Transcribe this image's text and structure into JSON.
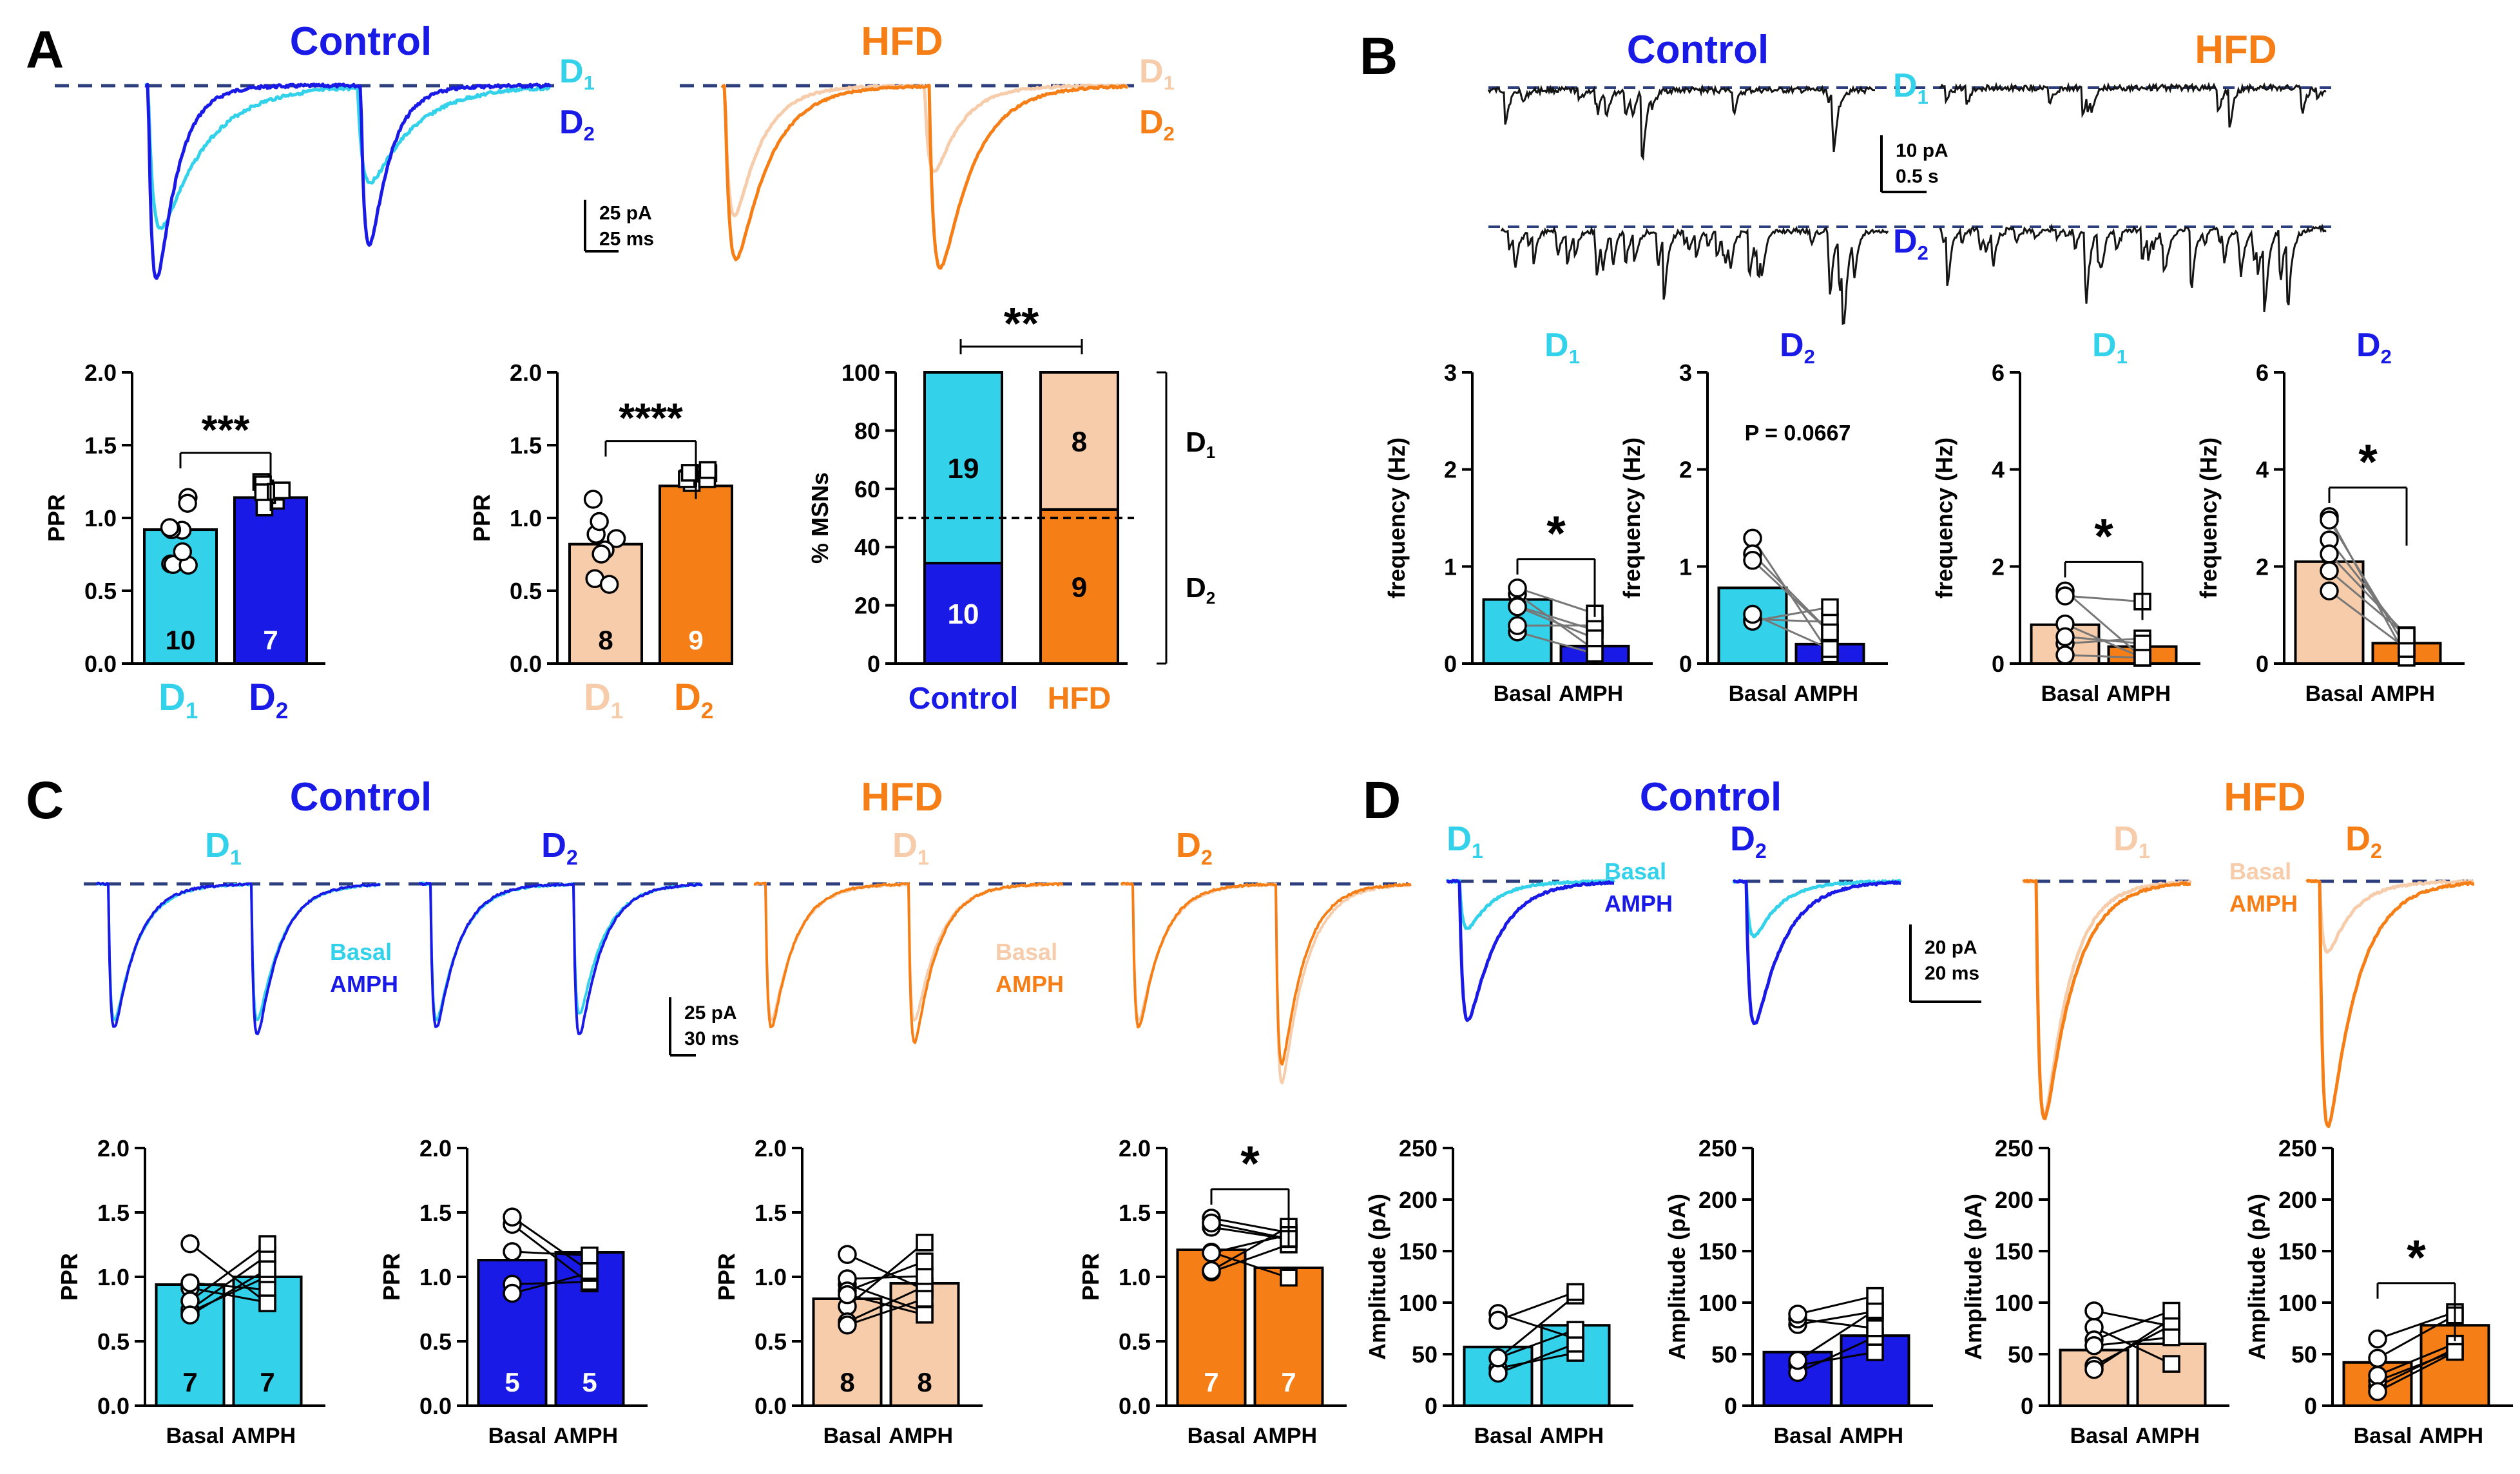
{
  "colors": {
    "control_d1": "#33d1ea",
    "control_d2": "#1a1ae6",
    "hfd_d1": "#f6ccaa",
    "hfd_d2": "#f57f16",
    "trace_black": "#141414",
    "baseline": "#2d3e7e"
  },
  "panels": {
    "A": {
      "letter": "A",
      "control_title": "Control",
      "hfd_title": "HFD",
      "d1_label": "D",
      "d2_label": "D",
      "sub1": "1",
      "sub2": "2",
      "scale_y": "25 pA",
      "scale_x": "25 ms"
    },
    "B": {
      "letter": "B",
      "control_title": "Control",
      "hfd_title": "HFD",
      "d1_label": "D",
      "d2_label": "D",
      "sub1": "1",
      "sub2": "2",
      "scale_y": "10 pA",
      "scale_x": "0.5 s"
    },
    "C": {
      "letter": "C",
      "control_title": "Control",
      "hfd_title": "HFD",
      "d_label": "D",
      "sub1": "1",
      "sub2": "2",
      "basal_label": "Basal",
      "amph_label": "AMPH",
      "scale_y": "25 pA",
      "scale_x": "30 ms"
    },
    "D": {
      "letter": "D",
      "control_title": "Control",
      "hfd_title": "HFD",
      "d_label": "D",
      "sub1": "1",
      "sub2": "2",
      "basal_label": "Basal",
      "amph_label": "AMPH",
      "scale_y": "20 pA",
      "scale_x": "20 ms"
    }
  },
  "chart_data": [
    {
      "id": "A-ppr-control",
      "type": "bar",
      "panel": "A",
      "ylabel": "PPR",
      "ylim": [
        0,
        2.0
      ],
      "yticks": [
        "0.0",
        "0.5",
        "1.0",
        "1.5",
        "2.0"
      ],
      "categories": [
        "D1",
        "D2"
      ],
      "category_labels": [
        {
          "main": "D",
          "sub": "1"
        },
        {
          "main": "D",
          "sub": "2"
        }
      ],
      "values": [
        0.92,
        1.14
      ],
      "n_labels": [
        "10",
        "7"
      ],
      "significance": "***"
    },
    {
      "id": "A-ppr-hfd",
      "type": "bar",
      "panel": "A",
      "ylabel": "PPR",
      "ylim": [
        0,
        2.0
      ],
      "yticks": [
        "0.0",
        "0.5",
        "1.0",
        "1.5",
        "2.0"
      ],
      "categories": [
        "D1",
        "D2"
      ],
      "category_labels": [
        {
          "main": "D",
          "sub": "1"
        },
        {
          "main": "D",
          "sub": "2"
        }
      ],
      "values": [
        0.82,
        1.22
      ],
      "n_labels": [
        "8",
        "9"
      ],
      "significance": "****"
    },
    {
      "id": "A-msns-stacked",
      "type": "bar",
      "panel": "A",
      "stacked": true,
      "ylabel": "% MSNs",
      "ylim": [
        0,
        100
      ],
      "yticks": [
        "0",
        "20",
        "40",
        "60",
        "80",
        "100"
      ],
      "categories": [
        "Control",
        "HFD"
      ],
      "series": [
        {
          "name": "D2",
          "values": [
            34.5,
            52.9
          ],
          "labels": [
            "10",
            "9"
          ]
        },
        {
          "name": "D1",
          "values": [
            65.5,
            47.1
          ],
          "labels": [
            "19",
            "8"
          ]
        }
      ],
      "bracket_labels": [
        {
          "main": "D",
          "sub": "1"
        },
        {
          "main": "D",
          "sub": "2"
        }
      ],
      "reference_line": 50,
      "significance": "**"
    },
    {
      "id": "B-freq-control-d1",
      "type": "bar",
      "panel": "B",
      "title": {
        "main": "D",
        "sub": "1"
      },
      "ylabel": "frequency (Hz)",
      "ylim": [
        0,
        3
      ],
      "yticks": [
        "0",
        "1",
        "2",
        "3"
      ],
      "categories": [
        "Basal",
        "AMPH"
      ],
      "values": [
        0.66,
        0.18
      ],
      "significance": "*"
    },
    {
      "id": "B-freq-control-d2",
      "type": "bar",
      "panel": "B",
      "title": {
        "main": "D",
        "sub": "2"
      },
      "ylabel": "frequency (Hz)",
      "ylim": [
        0,
        3
      ],
      "yticks": [
        "0",
        "1",
        "2",
        "3"
      ],
      "categories": [
        "Basal",
        "AMPH"
      ],
      "values": [
        0.78,
        0.2
      ],
      "annotation": "P = 0.0667"
    },
    {
      "id": "B-freq-hfd-d1",
      "type": "bar",
      "panel": "B",
      "title": {
        "main": "D",
        "sub": "1"
      },
      "ylabel": "frequency (Hz)",
      "ylim": [
        0,
        6
      ],
      "yticks": [
        "0",
        "2",
        "4",
        "6"
      ],
      "categories": [
        "Basal",
        "AMPH"
      ],
      "values": [
        0.8,
        0.35
      ],
      "significance": "*"
    },
    {
      "id": "B-freq-hfd-d2",
      "type": "bar",
      "panel": "B",
      "title": {
        "main": "D",
        "sub": "2"
      },
      "ylabel": "frequency (Hz)",
      "ylim": [
        0,
        6
      ],
      "yticks": [
        "0",
        "2",
        "4",
        "6"
      ],
      "categories": [
        "Basal",
        "AMPH"
      ],
      "values": [
        2.1,
        0.42
      ],
      "significance": "*"
    },
    {
      "id": "C-ppr-control-d1",
      "type": "bar",
      "panel": "C",
      "ylabel": "PPR",
      "ylim": [
        0,
        2.0
      ],
      "yticks": [
        "0.0",
        "0.5",
        "1.0",
        "1.5",
        "2.0"
      ],
      "categories": [
        "Basal",
        "AMPH"
      ],
      "values": [
        0.94,
        1.0
      ],
      "n_labels": [
        "7",
        "7"
      ]
    },
    {
      "id": "C-ppr-control-d2",
      "type": "bar",
      "panel": "C",
      "ylabel": "PPR",
      "ylim": [
        0,
        2.0
      ],
      "yticks": [
        "0.0",
        "0.5",
        "1.0",
        "1.5",
        "2.0"
      ],
      "categories": [
        "Basal",
        "AMPH"
      ],
      "values": [
        1.13,
        1.19
      ],
      "n_labels": [
        "5",
        "5"
      ]
    },
    {
      "id": "C-ppr-hfd-d1",
      "type": "bar",
      "panel": "C",
      "ylabel": "PPR",
      "ylim": [
        0,
        2.0
      ],
      "yticks": [
        "0.0",
        "0.5",
        "1.0",
        "1.5",
        "2.0"
      ],
      "categories": [
        "Basal",
        "AMPH"
      ],
      "values": [
        0.83,
        0.95
      ],
      "n_labels": [
        "8",
        "8"
      ]
    },
    {
      "id": "C-ppr-hfd-d2",
      "type": "bar",
      "panel": "C",
      "ylabel": "PPR",
      "ylim": [
        0,
        2.0
      ],
      "yticks": [
        "0.0",
        "0.5",
        "1.0",
        "1.5",
        "2.0"
      ],
      "categories": [
        "Basal",
        "AMPH"
      ],
      "values": [
        1.21,
        1.07
      ],
      "n_labels": [
        "7",
        "7"
      ],
      "significance": "*"
    },
    {
      "id": "D-amp-control-d1",
      "type": "bar",
      "panel": "D",
      "ylabel": "Amplitude (pA)",
      "ylim": [
        0,
        250
      ],
      "yticks": [
        "0",
        "50",
        "100",
        "150",
        "200",
        "250"
      ],
      "categories": [
        "Basal",
        "AMPH"
      ],
      "values": [
        57,
        78
      ]
    },
    {
      "id": "D-amp-control-d2",
      "type": "bar",
      "panel": "D",
      "ylabel": "Amplitude (pA)",
      "ylim": [
        0,
        250
      ],
      "yticks": [
        "0",
        "50",
        "100",
        "150",
        "200",
        "250"
      ],
      "categories": [
        "Basal",
        "AMPH"
      ],
      "values": [
        52,
        68
      ]
    },
    {
      "id": "D-amp-hfd-d1",
      "type": "bar",
      "panel": "D",
      "ylabel": "Amplitude (pA)",
      "ylim": [
        0,
        250
      ],
      "yticks": [
        "0",
        "50",
        "100",
        "150",
        "200",
        "250"
      ],
      "categories": [
        "Basal",
        "AMPH"
      ],
      "values": [
        54,
        60
      ]
    },
    {
      "id": "D-amp-hfd-d2",
      "type": "bar",
      "panel": "D",
      "ylabel": "Amplitude (pA)",
      "ylim": [
        0,
        250
      ],
      "yticks": [
        "0",
        "50",
        "100",
        "150",
        "200",
        "250"
      ],
      "categories": [
        "Basal",
        "AMPH"
      ],
      "values": [
        42,
        78
      ],
      "significance": "*"
    }
  ]
}
